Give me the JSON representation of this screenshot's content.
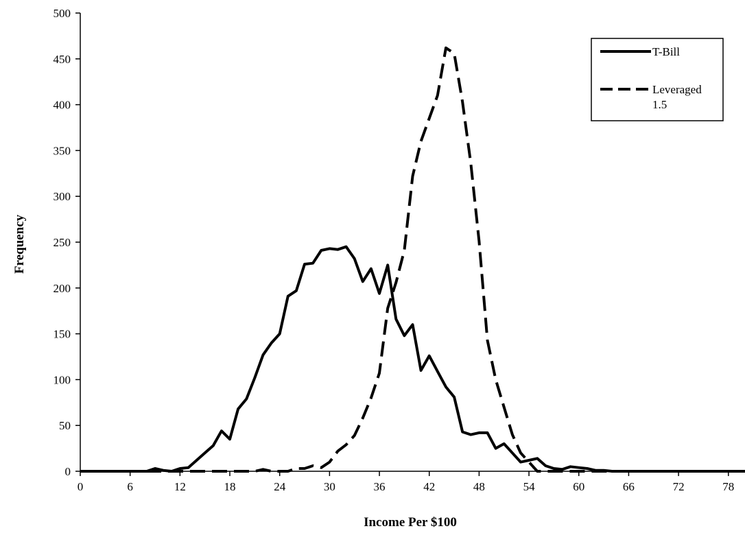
{
  "chart_data": {
    "type": "line",
    "title": "",
    "xlabel": "Income Per $100",
    "ylabel": "Frequency",
    "xlim": [
      0,
      80
    ],
    "ylim": [
      0,
      500
    ],
    "x_ticks": [
      0,
      6,
      12,
      18,
      24,
      30,
      36,
      42,
      48,
      54,
      60,
      66,
      72,
      78
    ],
    "y_ticks": [
      0,
      50,
      100,
      150,
      200,
      250,
      300,
      350,
      400,
      450,
      500
    ],
    "grid": false,
    "legend_position": "top-right",
    "series": [
      {
        "name": "T-Bill",
        "style": "solid",
        "color": "#000000",
        "x": [
          0,
          1,
          2,
          3,
          4,
          5,
          6,
          7,
          8,
          9,
          10,
          11,
          12,
          13,
          14,
          15,
          16,
          17,
          18,
          19,
          20,
          21,
          22,
          23,
          24,
          25,
          26,
          27,
          28,
          29,
          30,
          31,
          32,
          33,
          34,
          35,
          36,
          37,
          38,
          39,
          40,
          41,
          42,
          43,
          44,
          45,
          46,
          47,
          48,
          49,
          50,
          51,
          52,
          53,
          54,
          55,
          56,
          57,
          58,
          59,
          60,
          61,
          62,
          63,
          64,
          65,
          66,
          67,
          68,
          69,
          70,
          71,
          72,
          73,
          74,
          75,
          76,
          77,
          78,
          79,
          80
        ],
        "y": [
          0,
          0,
          0,
          0,
          0,
          0,
          0,
          0,
          0,
          3,
          1,
          0,
          3,
          4,
          12,
          20,
          28,
          44,
          35,
          68,
          79,
          102,
          127,
          140,
          150,
          191,
          197,
          226,
          227,
          241,
          243,
          242,
          245,
          232,
          207,
          221,
          194,
          225,
          166,
          148,
          160,
          110,
          126,
          109,
          92,
          81,
          43,
          40,
          42,
          42,
          25,
          30,
          20,
          10,
          12,
          14,
          6,
          3,
          2,
          5,
          4,
          3,
          1,
          1,
          0,
          0,
          0,
          0,
          0,
          0,
          0,
          0,
          0,
          0,
          0,
          0,
          0,
          0,
          0,
          0,
          0
        ]
      },
      {
        "name": "Leveraged 1.5",
        "style": "dashed",
        "color": "#000000",
        "x": [
          0,
          1,
          2,
          3,
          4,
          5,
          6,
          7,
          8,
          9,
          10,
          11,
          12,
          13,
          14,
          15,
          16,
          17,
          18,
          19,
          20,
          21,
          22,
          23,
          24,
          25,
          26,
          27,
          28,
          29,
          30,
          31,
          32,
          33,
          34,
          35,
          36,
          37,
          38,
          39,
          40,
          41,
          42,
          43,
          44,
          45,
          46,
          47,
          48,
          49,
          50,
          51,
          52,
          53,
          54,
          55,
          56,
          57,
          58,
          59,
          60,
          61,
          62,
          63,
          64,
          65,
          66,
          67,
          68,
          69,
          70,
          71,
          72,
          73,
          74,
          75,
          76,
          77,
          78,
          79,
          80
        ],
        "y": [
          0,
          0,
          0,
          0,
          0,
          0,
          0,
          0,
          0,
          0,
          0,
          0,
          0,
          0,
          0,
          0,
          0,
          0,
          0,
          0,
          0,
          0,
          2,
          0,
          0,
          0,
          3,
          3,
          6,
          4,
          10,
          22,
          29,
          39,
          58,
          80,
          107,
          178,
          206,
          241,
          322,
          360,
          385,
          410,
          462,
          456,
          403,
          336,
          251,
          143,
          100,
          70,
          40,
          20,
          10,
          0,
          0,
          0,
          0,
          0,
          0,
          0,
          0,
          0,
          0,
          0,
          0,
          0,
          0,
          0,
          0,
          0,
          0,
          0,
          0,
          0,
          0,
          0,
          0,
          0,
          0
        ]
      }
    ],
    "legend": [
      {
        "line1": "T-Bill",
        "line2": ""
      },
      {
        "line1": "Leveraged",
        "line2": "1.5"
      }
    ]
  }
}
